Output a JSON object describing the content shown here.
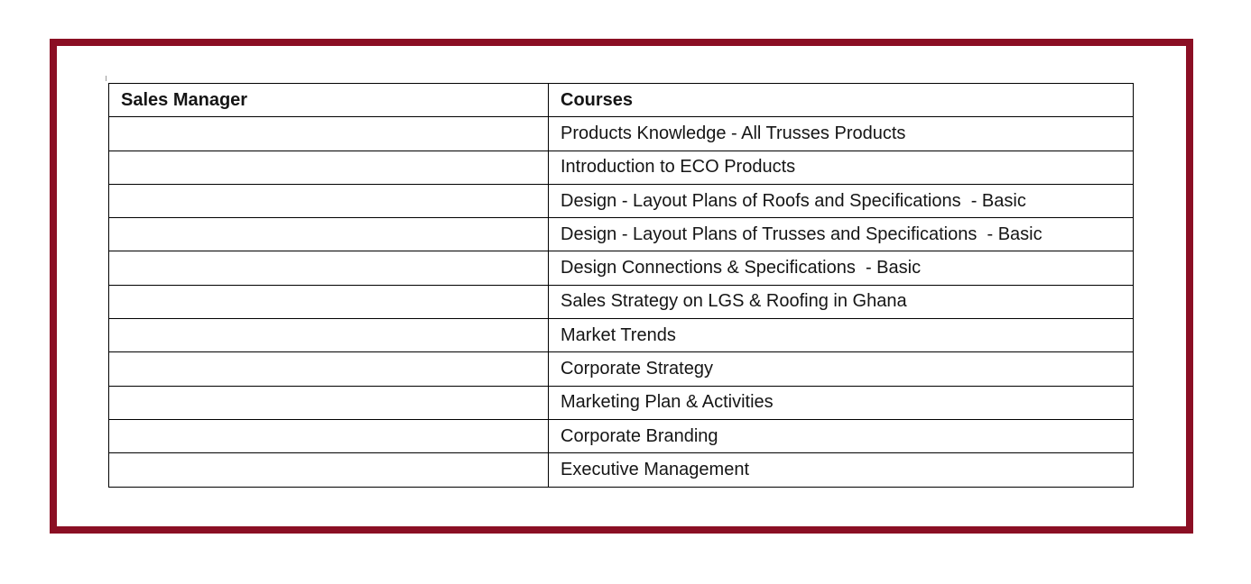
{
  "page": {
    "background_color": "#ffffff",
    "frame_border_color": "#8B0F24",
    "table_border_color": "#000000",
    "text_color": "#151515"
  },
  "table": {
    "header": {
      "col1": "Sales Manager",
      "col2": "Courses"
    },
    "courses": [
      "Products Knowledge - All Trusses Products",
      "Introduction to ECO Products",
      "Design - Layout Plans of Roofs and Specifications  - Basic",
      "Design - Layout Plans of Trusses and Specifications  - Basic",
      "Design Connections & Specifications  - Basic",
      "Sales Strategy on LGS & Roofing in Ghana",
      "Market Trends",
      "Corporate Strategy",
      "Marketing Plan & Activities",
      "Corporate Branding",
      "Executive Management"
    ]
  }
}
